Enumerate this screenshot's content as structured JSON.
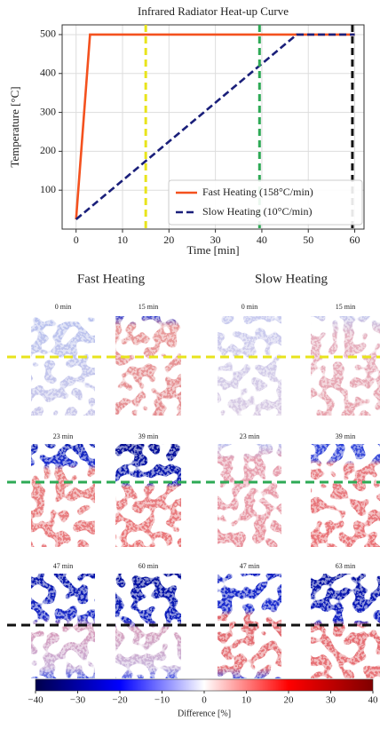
{
  "chart_data": [
    {
      "type": "line",
      "title": "Infrared Radiator Heat-up Curve",
      "xlabel": "Time [min]",
      "ylabel": "Temperature [°C]",
      "xlim": [
        -3,
        62
      ],
      "xticks": [
        0,
        10,
        20,
        30,
        40,
        50,
        60
      ],
      "ylim": [
        0,
        525
      ],
      "yticks": [
        100,
        200,
        300,
        400,
        500
      ],
      "grid": true,
      "legend": "lower right",
      "series": [
        {
          "name": "Fast Heating (158°C/min)",
          "color": "#f4511e",
          "dash": false,
          "x": [
            0,
            3,
            60
          ],
          "values": [
            25,
            500,
            500
          ]
        },
        {
          "name": "Slow Heating (10°C/min)",
          "color": "#1a1f7a",
          "dash": true,
          "x": [
            0,
            47.5,
            60
          ],
          "values": [
            25,
            500,
            500
          ]
        }
      ],
      "vlines": [
        {
          "x": 15,
          "color": "#e8e41c"
        },
        {
          "x": 39.5,
          "color": "#2eaa55"
        },
        {
          "x": 59.5,
          "color": "#111111"
        }
      ]
    },
    {
      "type": "colorbar",
      "xlabel": "Difference [%]",
      "xlim": [
        -40,
        40
      ],
      "xticks": [
        {
          "value": -40,
          "label": "−40"
        },
        {
          "value": -30,
          "label": "−30"
        },
        {
          "value": -20,
          "label": "−20"
        },
        {
          "value": -10,
          "label": "−10"
        },
        0,
        10,
        20,
        30,
        40
      ],
      "colors": [
        "#00004c",
        "#0000ff",
        "#ffffff",
        "#ff0000",
        "#800000"
      ]
    }
  ],
  "figure": {
    "columns": [
      "Fast Heating",
      "Slow Heating"
    ],
    "panels": [
      "0 min",
      "15 min",
      "0 min",
      "15 min",
      "23 min",
      "39 min",
      "23 min",
      "39 min",
      "47 min",
      "60 min",
      "47 min",
      "63 min"
    ]
  }
}
